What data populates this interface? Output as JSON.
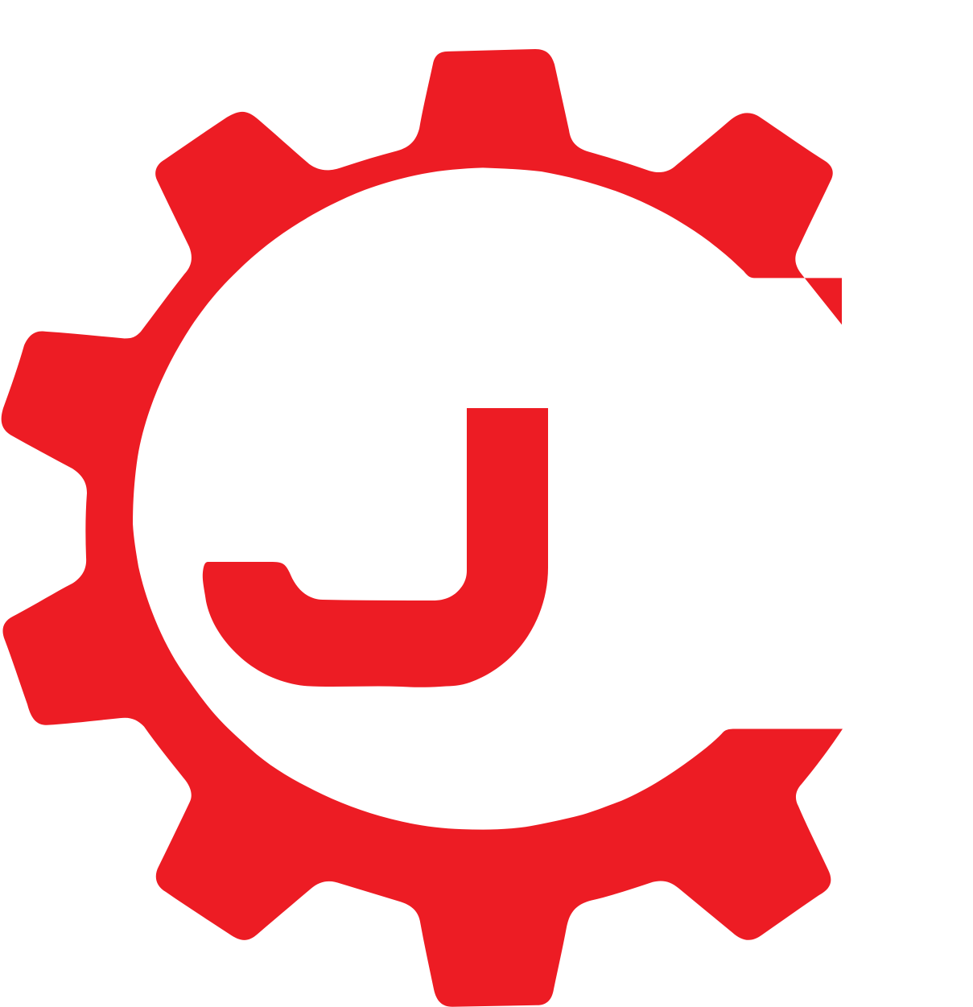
{
  "logo": {
    "name": "gear-letter-logo",
    "icon": "gear-icon",
    "letter_icon": "letter-j-icon",
    "colors": {
      "primary": "#ED1C24",
      "background": "#FFFFFF"
    }
  }
}
